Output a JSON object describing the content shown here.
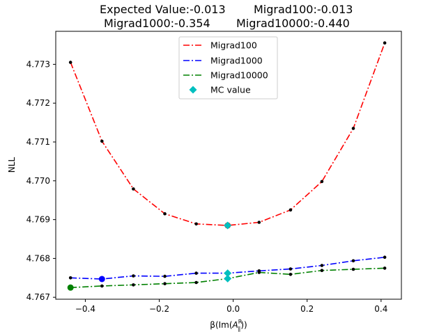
{
  "chart_data": {
    "type": "line",
    "title_line1_left": "Expected Value:-0.013",
    "title_line1_right": "Migrad100:-0.013",
    "title_line2_left": "Migrad1000:-0.354",
    "title_line2_right": "Migrad10000:-0.440",
    "xlabel_prefix": "β(Im(",
    "xlabel_var": "A",
    "xlabel_sup": "R",
    "xlabel_sub": "∥",
    "xlabel_suffix": "))",
    "ylabel": "NLL",
    "xlim": [
      -0.48,
      0.455
    ],
    "ylim": [
      4.76695,
      4.77385
    ],
    "xticks": [
      -0.4,
      -0.2,
      0.0,
      0.2,
      0.4
    ],
    "xtick_labels": [
      "−0.4",
      "−0.2",
      "0.0",
      "0.2",
      "0.4"
    ],
    "yticks": [
      4.767,
      4.768,
      4.769,
      4.77,
      4.771,
      4.772,
      4.773
    ],
    "ytick_labels": [
      "4.767",
      "4.768",
      "4.769",
      "4.770",
      "4.771",
      "4.772",
      "4.773"
    ],
    "x": [
      -0.44,
      -0.355,
      -0.27,
      -0.185,
      -0.1,
      -0.015,
      0.07,
      0.155,
      0.24,
      0.325,
      0.41
    ],
    "series": [
      {
        "name": "Migrad100",
        "color": "#ff0000",
        "values": [
          4.77305,
          4.77102,
          4.76979,
          4.76915,
          4.76889,
          4.76885,
          4.76893,
          4.76925,
          4.76998,
          4.77135,
          4.77355
        ],
        "min_index": 5
      },
      {
        "name": "Migrad1000",
        "color": "#0000ff",
        "values": [
          4.7675,
          4.76747,
          4.76755,
          4.76754,
          4.76762,
          4.76762,
          4.76768,
          4.76773,
          4.76782,
          4.76794,
          4.76803
        ],
        "min_index": 1
      },
      {
        "name": "Migrad10000",
        "color": "#008000",
        "values": [
          4.76725,
          4.76729,
          4.76732,
          4.76735,
          4.76738,
          4.76748,
          4.76764,
          4.76759,
          4.76769,
          4.76772,
          4.76775
        ],
        "min_index": 0
      }
    ],
    "mc_value": {
      "name": "MC value",
      "color": "#00bfbf",
      "x": -0.015,
      "points": [
        4.76885,
        4.76762,
        4.76748
      ]
    },
    "legend_position": "upper center",
    "grid": false
  }
}
